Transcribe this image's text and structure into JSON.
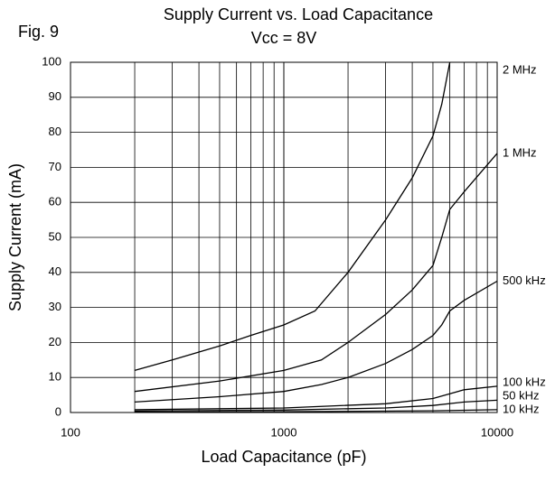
{
  "chart_data": {
    "type": "line",
    "figure_label": "Fig. 9",
    "title": "Supply Current vs. Load Capacitance",
    "subtitle": "Vcc = 8V",
    "x_label": "Load Capacitance (pF)",
    "y_label": "Supply Current (mA)",
    "log_x": true,
    "xlim": [
      100,
      10000
    ],
    "xticks": [
      100,
      1000,
      10000
    ],
    "xgrid": [
      200,
      300,
      400,
      500,
      600,
      700,
      800,
      900,
      1000,
      2000,
      3000,
      4000,
      5000,
      6000,
      7000,
      8000,
      9000,
      10000
    ],
    "ylim": [
      0,
      100
    ],
    "yticks": [
      0,
      10,
      20,
      30,
      40,
      50,
      60,
      70,
      80,
      90,
      100
    ],
    "grid": true,
    "series": [
      {
        "name": "2 MHz",
        "color": "#000000",
        "x": [
          200,
          300,
          500,
          700,
          1000,
          1400,
          2000,
          3000,
          4000,
          5000,
          5500,
          6000
        ],
        "values": [
          12,
          15,
          19,
          22,
          25,
          29,
          40,
          55,
          67,
          79,
          88,
          100
        ]
      },
      {
        "name": "1 MHz",
        "color": "#000000",
        "x": [
          200,
          500,
          1000,
          1500,
          2000,
          3000,
          4000,
          5000,
          5500,
          6000,
          7000,
          10000
        ],
        "values": [
          6,
          9,
          12,
          15,
          20,
          28,
          35,
          42,
          50,
          58,
          63,
          74
        ]
      },
      {
        "name": "500 kHz",
        "color": "#000000",
        "x": [
          200,
          500,
          1000,
          1500,
          2000,
          3000,
          4000,
          5000,
          5500,
          6000,
          7000,
          10000
        ],
        "values": [
          3,
          4.5,
          6,
          8,
          10,
          14,
          18,
          22,
          25,
          29,
          32,
          37.5
        ]
      },
      {
        "name": "100 kHz",
        "color": "#000000",
        "x": [
          200,
          1000,
          3000,
          5000,
          7000,
          10000
        ],
        "values": [
          0.8,
          1.3,
          2.5,
          4,
          6.5,
          7.5
        ]
      },
      {
        "name": "50 kHz",
        "color": "#000000",
        "x": [
          200,
          1000,
          3000,
          5000,
          7000,
          10000
        ],
        "values": [
          0.4,
          0.7,
          1.3,
          2,
          3,
          3.5
        ]
      },
      {
        "name": "10 kHz",
        "color": "#000000",
        "x": [
          200,
          1000,
          5000,
          10000
        ],
        "values": [
          0.1,
          0.2,
          0.5,
          0.8
        ]
      }
    ]
  }
}
